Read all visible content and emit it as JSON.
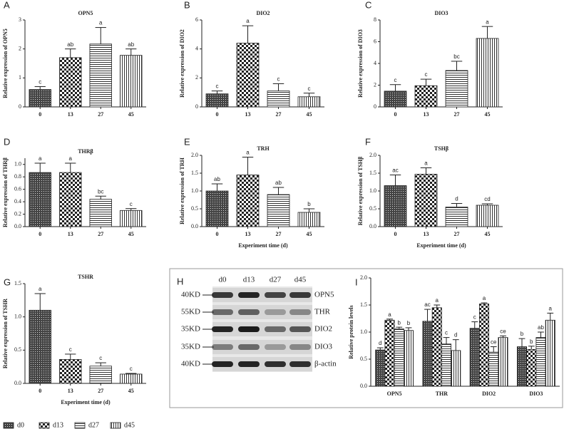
{
  "chart_data": [
    {
      "type": "bar",
      "panel": "A",
      "title": "OPN5",
      "y_label": "Relative expression of OPN5",
      "categories": [
        "0",
        "13",
        "27",
        "45"
      ],
      "values": [
        0.6,
        1.7,
        2.17,
        1.78
      ],
      "errors": [
        0.1,
        0.3,
        0.57,
        0.22
      ],
      "letters": [
        "c",
        "ab",
        "a",
        "ab"
      ],
      "patterns": [
        "crosshatch",
        "checker",
        "hlines",
        "vlines"
      ],
      "ylim": [
        0,
        3
      ],
      "yticks": [
        0,
        1,
        2,
        3
      ]
    },
    {
      "type": "bar",
      "panel": "B",
      "title": "DIO2",
      "y_label": "Relative expression of DIO2",
      "categories": [
        "0",
        "13",
        "27",
        "45"
      ],
      "values": [
        0.9,
        4.4,
        1.1,
        0.7
      ],
      "errors": [
        0.2,
        1.2,
        0.5,
        0.25
      ],
      "letters": [
        "c",
        "a",
        "c",
        "c"
      ],
      "patterns": [
        "crosshatch",
        "checker",
        "hlines",
        "vlines"
      ],
      "ylim": [
        0,
        6
      ],
      "yticks": [
        0,
        2,
        4,
        6
      ]
    },
    {
      "type": "bar",
      "panel": "C",
      "title": "DIO3",
      "y_label": "Relative expression of DIO3",
      "categories": [
        "0",
        "13",
        "27",
        "45"
      ],
      "values": [
        1.45,
        1.95,
        3.35,
        6.3
      ],
      "errors": [
        0.6,
        0.6,
        0.85,
        1.1
      ],
      "letters": [
        "c",
        "c",
        "bc",
        "a"
      ],
      "patterns": [
        "crosshatch",
        "checker",
        "hlines",
        "vlines"
      ],
      "ylim": [
        0,
        8
      ],
      "yticks": [
        0,
        2,
        4,
        6,
        8
      ]
    },
    {
      "type": "bar",
      "panel": "D",
      "title": "THRβ",
      "y_label": "Relative expression of THRβ",
      "categories": [
        "0",
        "13",
        "27",
        "45"
      ],
      "values": [
        0.87,
        0.87,
        0.44,
        0.26
      ],
      "errors": [
        0.15,
        0.15,
        0.05,
        0.03
      ],
      "letters": [
        "a",
        "a",
        "bc",
        "c"
      ],
      "patterns": [
        "crosshatch",
        "checker",
        "hlines",
        "vlines"
      ],
      "ylim": [
        0,
        1.1
      ],
      "yticks": [
        {
          "value": 0,
          "label": "0.0"
        },
        0.2,
        0.4,
        0.6,
        0.8,
        {
          "value": 1,
          "label": "1.0"
        }
      ]
    },
    {
      "type": "bar",
      "panel": "E",
      "title": "TRH",
      "y_label": "Relative expression of TRH",
      "x_label": "Experiment  time (d)",
      "categories": [
        "0",
        "13",
        "27",
        "45"
      ],
      "values": [
        1.0,
        1.45,
        0.9,
        0.4
      ],
      "errors": [
        0.2,
        0.5,
        0.2,
        0.1
      ],
      "letters": [
        "ab",
        "a",
        "ab",
        "b"
      ],
      "patterns": [
        "crosshatch",
        "checker",
        "hlines",
        "vlines"
      ],
      "ylim": [
        0,
        2
      ],
      "yticks": [
        {
          "value": 0,
          "label": "0.0"
        },
        0.5,
        {
          "value": 1,
          "label": "1.0"
        },
        1.5,
        {
          "value": 2,
          "label": "2.0"
        }
      ]
    },
    {
      "type": "bar",
      "panel": "F",
      "title": "TSHβ",
      "y_label": "Relative expression of TSHβ",
      "x_label": "Experiment  time (d)",
      "categories": [
        "0",
        "13",
        "27",
        "45"
      ],
      "values": [
        1.15,
        1.47,
        0.55,
        0.6
      ],
      "errors": [
        0.3,
        0.18,
        0.1,
        0.04
      ],
      "letters": [
        "ac",
        "a",
        "d",
        "cd"
      ],
      "patterns": [
        "crosshatch",
        "checker",
        "hlines",
        "vlines"
      ],
      "ylim": [
        0,
        2
      ],
      "yticks": [
        {
          "value": 0,
          "label": "0.0"
        },
        0.5,
        {
          "value": 1,
          "label": "1.0"
        },
        1.5,
        {
          "value": 2,
          "label": "2.0"
        }
      ]
    },
    {
      "type": "bar",
      "panel": "G",
      "title": "TSHR",
      "y_label": "Relative expression of TSHR",
      "x_label": "Experiment  time (d)",
      "categories": [
        "0",
        "13",
        "27",
        "45"
      ],
      "values": [
        1.1,
        0.36,
        0.26,
        0.14
      ],
      "errors": [
        0.25,
        0.08,
        0.05,
        0.01
      ],
      "letters": [
        "a",
        "c",
        "c",
        "c"
      ],
      "patterns": [
        "crosshatch",
        "checker",
        "hlines",
        "vlines"
      ],
      "ylim": [
        0,
        1.5
      ],
      "yticks": [
        {
          "value": 0,
          "label": "0.0"
        },
        0.5,
        {
          "value": 1,
          "label": "1.0"
        },
        1.5
      ]
    },
    {
      "type": "grouped_bar",
      "panel": "I",
      "y_label": "Relative protein levels",
      "categories": [
        "OPN5",
        "THR",
        "DIO2",
        "DIO3"
      ],
      "series": [
        {
          "name": "d0",
          "pattern": "crosshatch",
          "values": [
            0.67,
            1.2,
            1.07,
            0.73
          ],
          "errors": [
            0.04,
            0.22,
            0.12,
            0.15
          ],
          "letters": [
            "d",
            "ac",
            "c",
            "b"
          ]
        },
        {
          "name": "d13",
          "pattern": "checker",
          "values": [
            1.22,
            1.45,
            1.52,
            0.68
          ],
          "errors": [
            0.02,
            0.05,
            0.02,
            0.06
          ],
          "letters": [
            "a",
            "a",
            "a",
            "b"
          ]
        },
        {
          "name": "d27",
          "pattern": "hlines",
          "values": [
            1.06,
            0.78,
            0.63,
            0.9
          ],
          "errors": [
            0.03,
            0.12,
            0.1,
            0.1
          ],
          "letters": [
            "b",
            "c",
            "ce",
            "ab"
          ]
        },
        {
          "name": "d45",
          "pattern": "vlines",
          "values": [
            1.03,
            0.66,
            0.9,
            1.22
          ],
          "errors": [
            0.05,
            0.2,
            0.03,
            0.13
          ],
          "letters": [
            "b",
            "d",
            "ce",
            "a"
          ]
        }
      ],
      "ylim": [
        0,
        2
      ],
      "yticks": [
        {
          "value": 0,
          "label": "0.0"
        },
        0.5,
        {
          "value": 1,
          "label": "1.0"
        },
        1.5,
        {
          "value": 2,
          "label": "2.0"
        }
      ]
    }
  ],
  "blot": {
    "panel": "H",
    "lanes": [
      "d0",
      "d13",
      "d27",
      "d45"
    ],
    "rows": [
      {
        "size": "40KD",
        "protein": "OPN5"
      },
      {
        "size": "55KD",
        "protein": "THR"
      },
      {
        "size": "35KD",
        "protein": "DIO2"
      },
      {
        "size": "35KD",
        "protein": "DIO3"
      },
      {
        "size": "40KD",
        "protein": "β-actin"
      }
    ]
  }
}
